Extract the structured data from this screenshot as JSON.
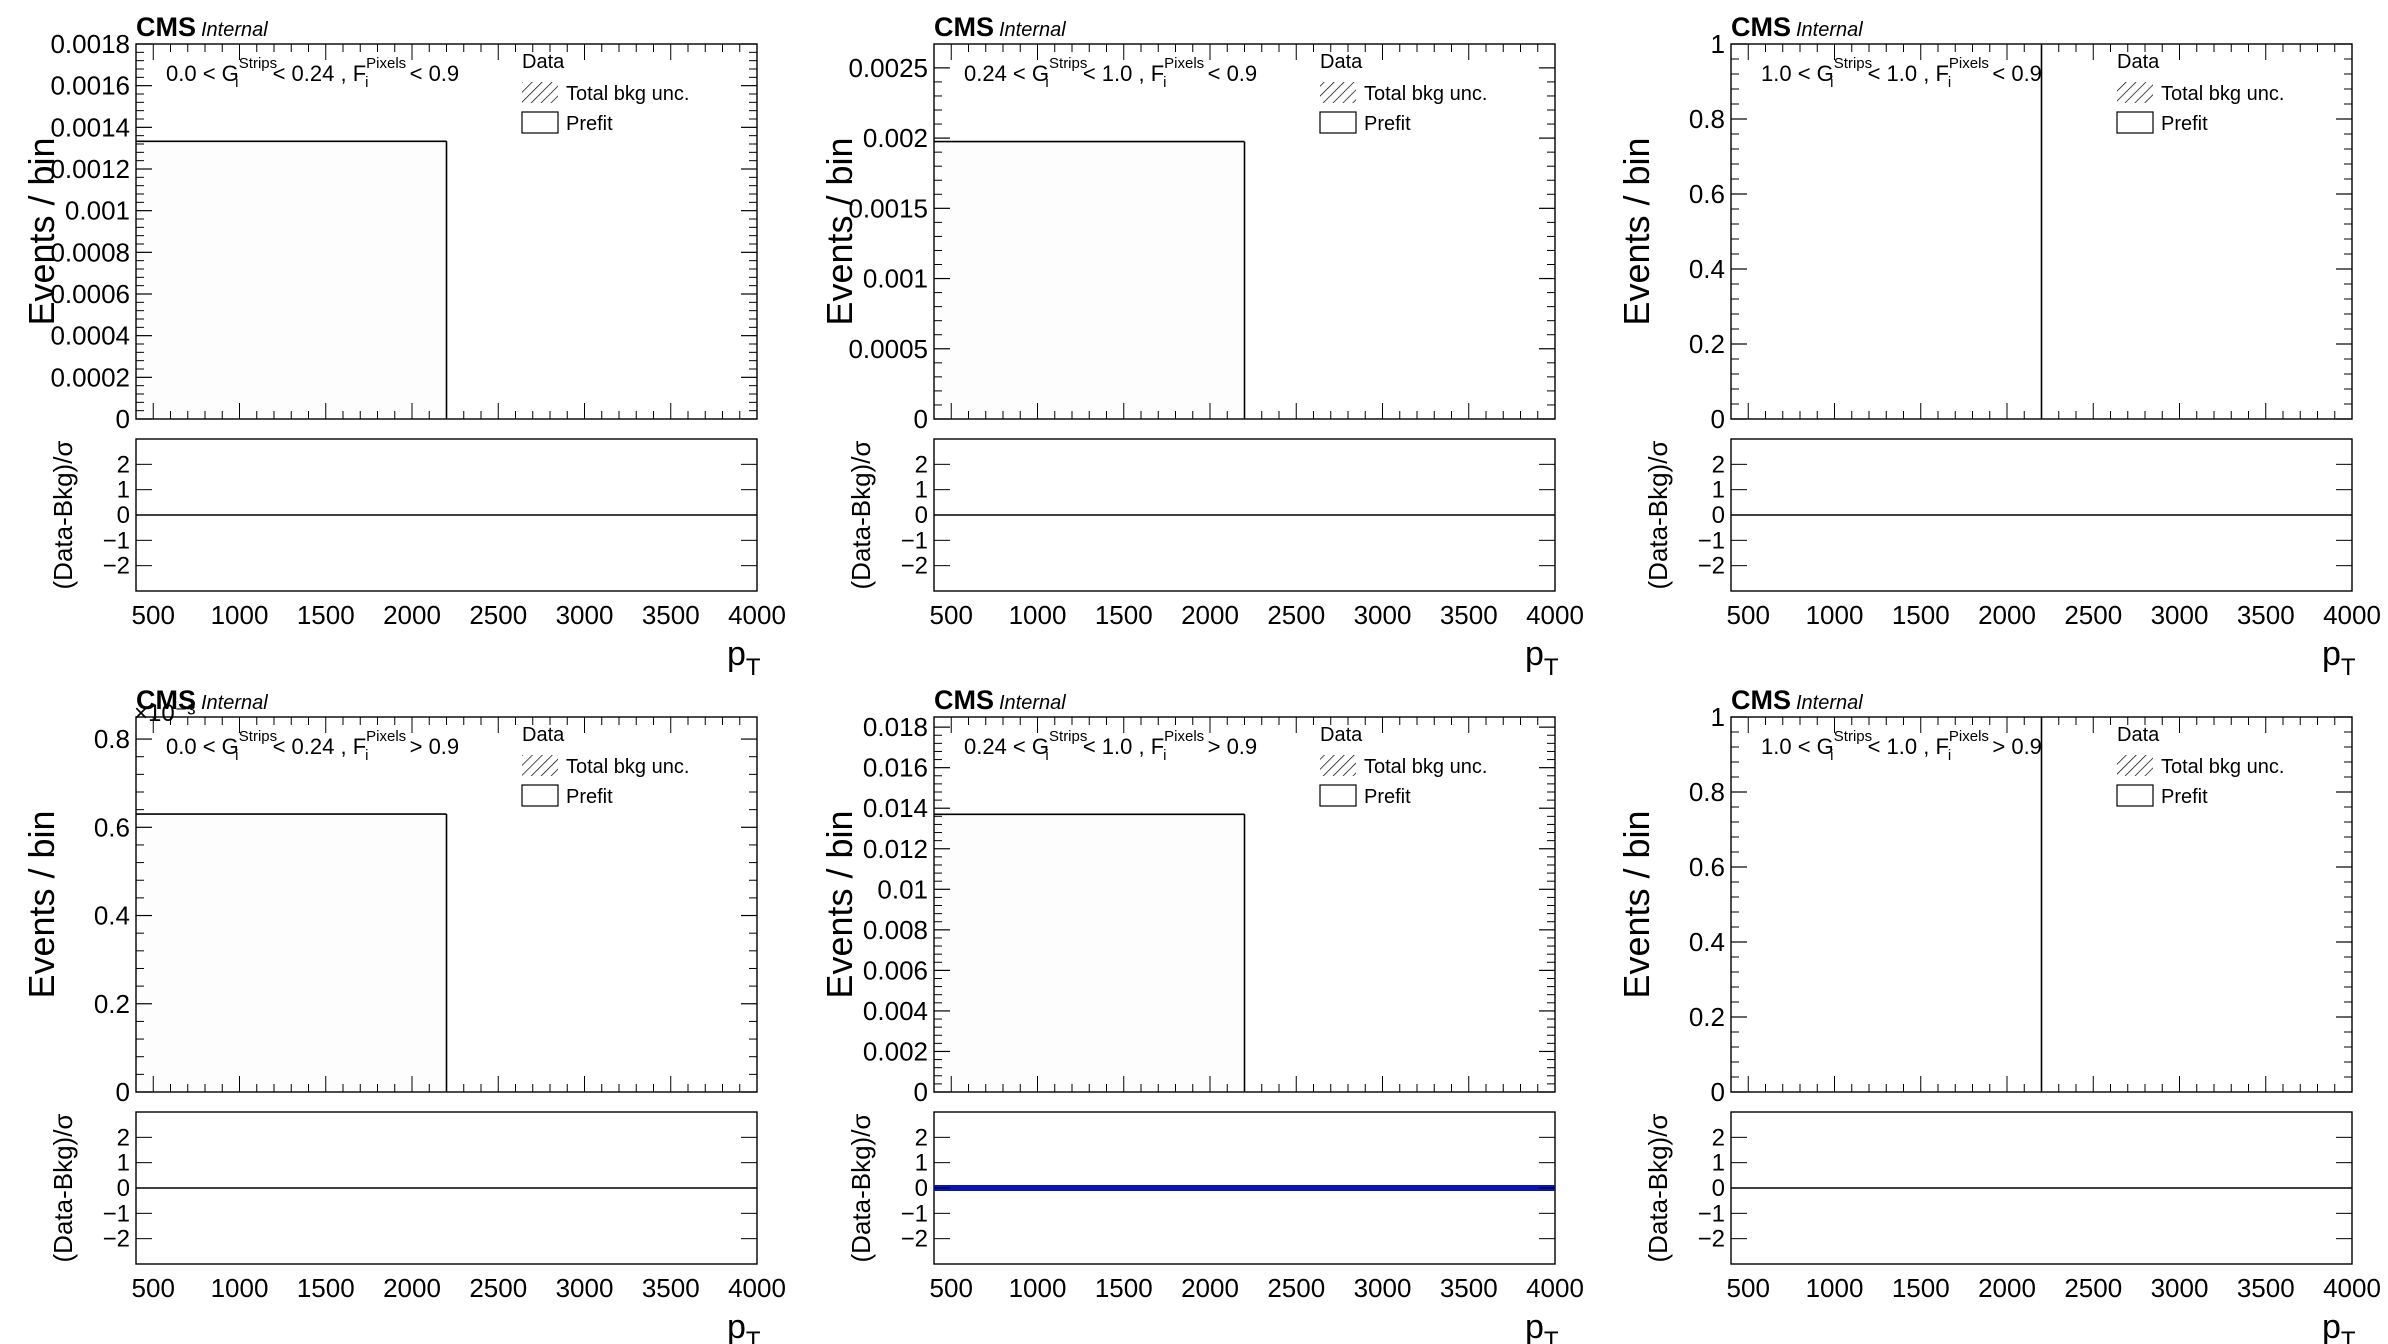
{
  "chart_data": [
    {
      "type": "bar",
      "experiment": "CMS",
      "status": "Internal",
      "region": {
        "g": "0.0 < G",
        "g2": " < 0.24 , F",
        "f2": " < 0.9"
      },
      "sup": {
        "g": "Strips",
        "f": "Pixels"
      },
      "sub": "i",
      "ylabel": "Events / bin",
      "ylabel_ratio": "(Data-Bkg)/σ",
      "xlabel": "p",
      "xsub": "T",
      "xlim": [
        400,
        4000
      ],
      "xticks": [
        500,
        1000,
        1500,
        2000,
        2500,
        3000,
        3500,
        4000
      ],
      "ylim": [
        0,
        0.0018
      ],
      "yticks": [
        "0",
        "0.0002",
        "0.0004",
        "0.0006",
        "0.0008",
        "0.001",
        "0.0012",
        "0.0014",
        "0.0016",
        "0.0018"
      ],
      "yscale_label": "",
      "ratio_ylim": [
        -3,
        3
      ],
      "ratio_yticks": [
        "−2",
        "−1",
        "0",
        "1",
        "2"
      ],
      "prefit": [
        {
          "x0": 400,
          "x1": 2200,
          "y": 0.001333
        },
        {
          "x0": 2200,
          "x1": 4000,
          "y": 0.0
        }
      ],
      "ratio_values": [
        0,
        0
      ],
      "ratio_highlight": false,
      "legend": [
        "Data",
        "Total bkg unc.",
        "Prefit"
      ]
    },
    {
      "type": "bar",
      "experiment": "CMS",
      "status": "Internal",
      "region": {
        "g": "0.24 < G",
        "g2": " < 1.0 , F",
        "f2": " < 0.9"
      },
      "sup": {
        "g": "Strips",
        "f": "Pixels"
      },
      "sub": "i",
      "ylabel": "Events / bin",
      "ylabel_ratio": "(Data-Bkg)/σ",
      "xlabel": "p",
      "xsub": "T",
      "xlim": [
        400,
        4000
      ],
      "xticks": [
        500,
        1000,
        1500,
        2000,
        2500,
        3000,
        3500,
        4000
      ],
      "ylim": [
        0,
        0.00267
      ],
      "yticks": [
        "0",
        "0.0005",
        "0.001",
        "0.0015",
        "0.002",
        "0.0025"
      ],
      "yscale_label": "",
      "ratio_ylim": [
        -3,
        3
      ],
      "ratio_yticks": [
        "−2",
        "−1",
        "0",
        "1",
        "2"
      ],
      "prefit": [
        {
          "x0": 400,
          "x1": 2200,
          "y": 0.001975
        },
        {
          "x0": 2200,
          "x1": 4000,
          "y": 0.0
        }
      ],
      "ratio_values": [
        0,
        0
      ],
      "ratio_highlight": false,
      "legend": [
        "Data",
        "Total bkg unc.",
        "Prefit"
      ]
    },
    {
      "type": "bar",
      "experiment": "CMS",
      "status": "Internal",
      "region": {
        "g": "1.0 < G",
        "g2": " < 1.0 , F",
        "f2": " < 0.9"
      },
      "sup": {
        "g": "Strips",
        "f": "Pixels"
      },
      "sub": "i",
      "ylabel": "Events / bin",
      "ylabel_ratio": "(Data-Bkg)/σ",
      "xlabel": "p",
      "xsub": "T",
      "xlim": [
        400,
        4000
      ],
      "xticks": [
        500,
        1000,
        1500,
        2000,
        2500,
        3000,
        3500,
        4000
      ],
      "ylim": [
        0,
        1
      ],
      "yticks": [
        "0",
        "0.2",
        "0.4",
        "0.6",
        "0.8",
        "1"
      ],
      "yscale_label": "",
      "ratio_ylim": [
        -3,
        3
      ],
      "ratio_yticks": [
        "−2",
        "−1",
        "0",
        "1",
        "2"
      ],
      "prefit": [
        {
          "x0": 400,
          "x1": 2200,
          "y": 0
        },
        {
          "x0": 2200,
          "x1": 4000,
          "y": 0
        }
      ],
      "ratio_values": [
        0,
        0
      ],
      "ratio_highlight": false,
      "legend": [
        "Data",
        "Total bkg unc.",
        "Prefit"
      ]
    },
    {
      "type": "bar",
      "experiment": "CMS",
      "status": "Internal",
      "region": {
        "g": "0.0 < G",
        "g2": " < 0.24 , F",
        "f2": " > 0.9"
      },
      "sup": {
        "g": "Strips",
        "f": "Pixels"
      },
      "sub": "i",
      "ylabel": "Events / bin",
      "ylabel_ratio": "(Data-Bkg)/σ",
      "xlabel": "p",
      "xsub": "T",
      "xlim": [
        400,
        4000
      ],
      "xticks": [
        500,
        1000,
        1500,
        2000,
        2500,
        3000,
        3500,
        4000
      ],
      "ylim": [
        0,
        0.85
      ],
      "yticks": [
        "0",
        "0.2",
        "0.4",
        "0.6",
        "0.8"
      ],
      "yscale_label": "×10⁻³",
      "ratio_ylim": [
        -3,
        3
      ],
      "ratio_yticks": [
        "−2",
        "−1",
        "0",
        "1",
        "2"
      ],
      "prefit": [
        {
          "x0": 400,
          "x1": 2200,
          "y": 0.63
        },
        {
          "x0": 2200,
          "x1": 4000,
          "y": 0.0
        }
      ],
      "ratio_values": [
        0,
        0
      ],
      "ratio_highlight": false,
      "legend": [
        "Data",
        "Total bkg unc.",
        "Prefit"
      ]
    },
    {
      "type": "bar",
      "experiment": "CMS",
      "status": "Internal",
      "region": {
        "g": "0.24 < G",
        "g2": " < 1.0 , F",
        "f2": " > 0.9"
      },
      "sup": {
        "g": "Strips",
        "f": "Pixels"
      },
      "sub": "i",
      "ylabel": "Events / bin",
      "ylabel_ratio": "(Data-Bkg)/σ",
      "xlabel": "p",
      "xsub": "T",
      "xlim": [
        400,
        4000
      ],
      "xticks": [
        500,
        1000,
        1500,
        2000,
        2500,
        3000,
        3500,
        4000
      ],
      "ylim": [
        0,
        0.0185
      ],
      "yticks": [
        "0",
        "0.002",
        "0.004",
        "0.006",
        "0.008",
        "0.01",
        "0.012",
        "0.014",
        "0.016",
        "0.018"
      ],
      "yscale_label": "",
      "ratio_ylim": [
        -3,
        3
      ],
      "ratio_yticks": [
        "−2",
        "−1",
        "0",
        "1",
        "2"
      ],
      "prefit": [
        {
          "x0": 400,
          "x1": 2200,
          "y": 0.0137
        },
        {
          "x0": 2200,
          "x1": 4000,
          "y": 0.0
        }
      ],
      "ratio_values": [
        0,
        0
      ],
      "ratio_highlight": true,
      "legend": [
        "Data",
        "Total bkg unc.",
        "Prefit"
      ]
    },
    {
      "type": "bar",
      "experiment": "CMS",
      "status": "Internal",
      "region": {
        "g": "1.0 < G",
        "g2": " < 1.0 , F",
        "f2": " > 0.9"
      },
      "sup": {
        "g": "Strips",
        "f": "Pixels"
      },
      "sub": "i",
      "ylabel": "Events / bin",
      "ylabel_ratio": "(Data-Bkg)/σ",
      "xlabel": "p",
      "xsub": "T",
      "xlim": [
        400,
        4000
      ],
      "xticks": [
        500,
        1000,
        1500,
        2000,
        2500,
        3000,
        3500,
        4000
      ],
      "ylim": [
        0,
        1
      ],
      "yticks": [
        "0",
        "0.2",
        "0.4",
        "0.6",
        "0.8",
        "1"
      ],
      "yscale_label": "",
      "ratio_ylim": [
        -3,
        3
      ],
      "ratio_yticks": [
        "−2",
        "−1",
        "0",
        "1",
        "2"
      ],
      "prefit": [
        {
          "x0": 400,
          "x1": 2200,
          "y": 0
        },
        {
          "x0": 2200,
          "x1": 4000,
          "y": 0
        }
      ],
      "ratio_values": [
        0,
        0
      ],
      "ratio_highlight": false,
      "legend": [
        "Data",
        "Total bkg unc.",
        "Prefit"
      ]
    }
  ],
  "colors": {
    "axis": "#000000",
    "prefit": "#000000",
    "ratio_line": "#000000",
    "ratio_highlight": "#0a14b4",
    "fill": "#fdfdfd"
  }
}
